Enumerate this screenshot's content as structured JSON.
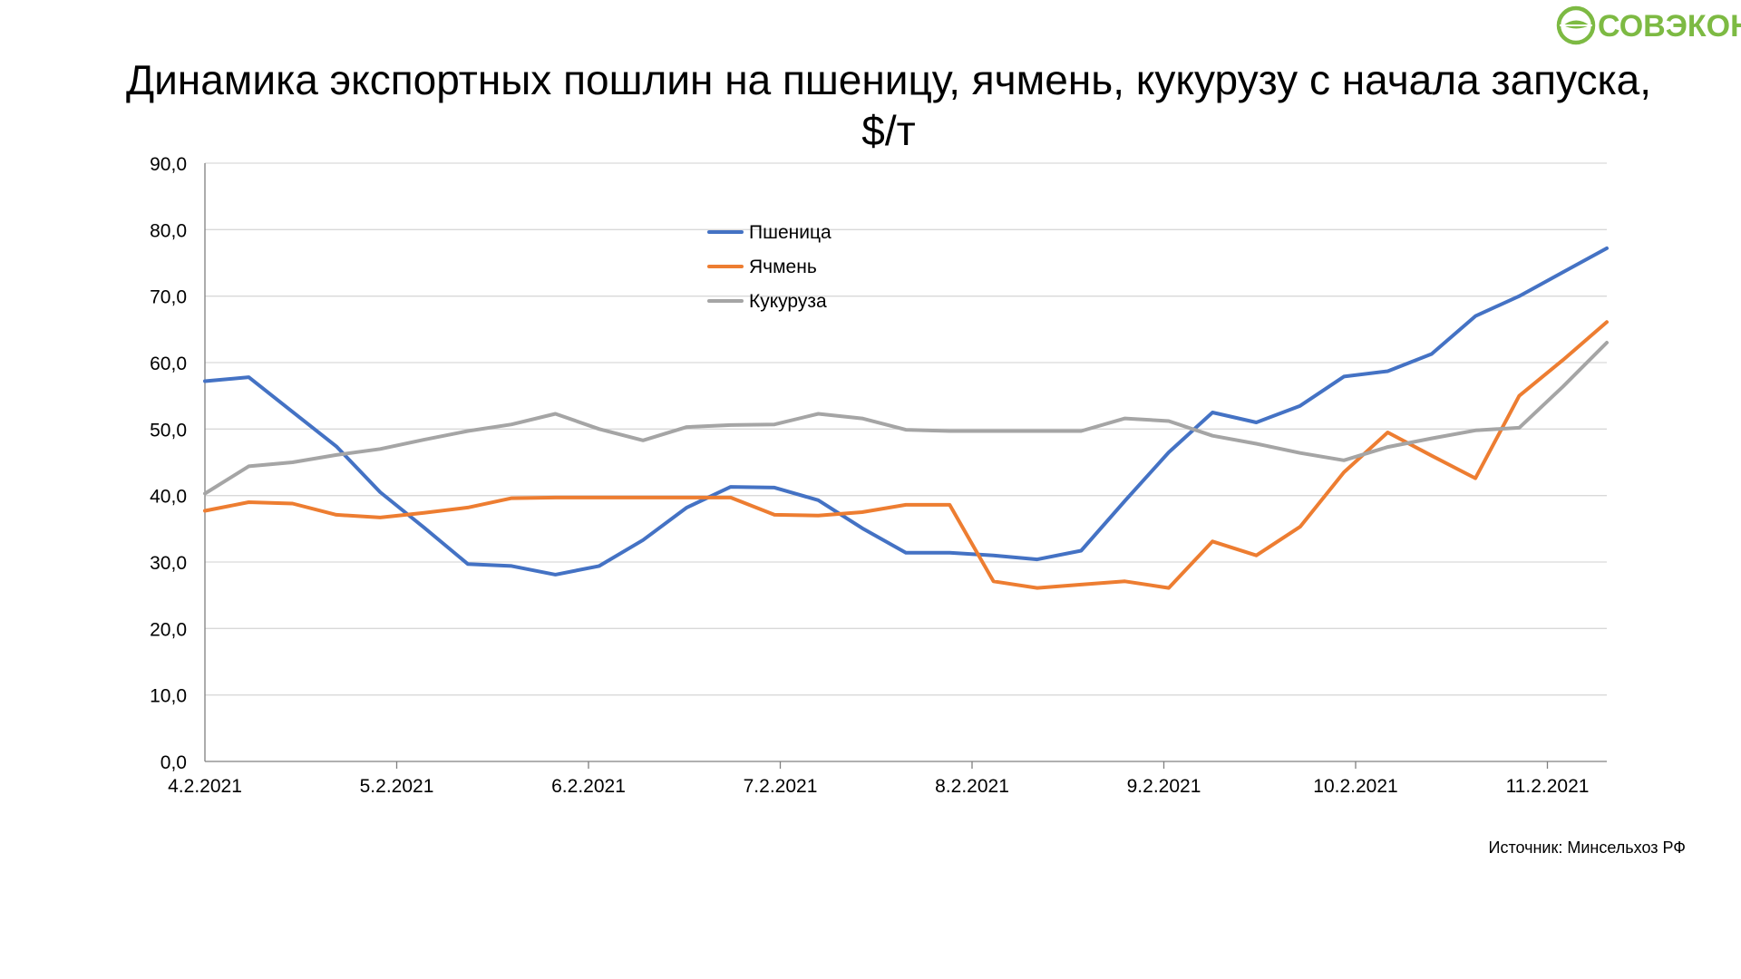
{
  "logo": {
    "text": "СОВЭКОН",
    "color": "#7dba43"
  },
  "source": "Источник: Минсельхоз РФ",
  "chart_data": {
    "type": "line",
    "title": "Динамика экспортных пошлин на пшеницу, ячмень, кукурузу с начала запуска, $/т",
    "xlabel": "",
    "ylabel": "",
    "ylim": [
      0,
      90
    ],
    "yticks": [
      "0,0",
      "10,0",
      "20,0",
      "30,0",
      "40,0",
      "50,0",
      "60,0",
      "70,0",
      "80,0",
      "90,0"
    ],
    "x_tick_labels": [
      "4.2.2021",
      "5.2.2021",
      "6.2.2021",
      "7.2.2021",
      "8.2.2021",
      "9.2.2021",
      "10.2.2021",
      "11.2.2021"
    ],
    "grid": true,
    "legend": "top-center",
    "series": [
      {
        "name": "Пшеница",
        "color": "#4472c4",
        "values": [
          57.2,
          57.8,
          52.6,
          47.4,
          40.5,
          35.2,
          29.7,
          29.4,
          28.1,
          29.4,
          33.3,
          38.2,
          41.3,
          41.2,
          39.3,
          35.1,
          31.4,
          31.4,
          31.0,
          30.4,
          31.7,
          39.2,
          46.5,
          52.5,
          51.0,
          53.5,
          57.9,
          58.7,
          61.3,
          67.0,
          70.0,
          73.6,
          77.2
        ]
      },
      {
        "name": "Ячмень",
        "color": "#ed7d31",
        "values": [
          37.7,
          39.0,
          38.8,
          37.1,
          36.7,
          37.4,
          38.2,
          39.6,
          39.7,
          39.7,
          39.7,
          39.7,
          39.7,
          37.1,
          37.0,
          37.5,
          38.6,
          38.6,
          27.1,
          26.1,
          26.6,
          27.1,
          26.1,
          33.1,
          31.0,
          35.3,
          43.5,
          49.5,
          46.0,
          42.6,
          55.0,
          60.4,
          66.1
        ]
      },
      {
        "name": "Кукуруза",
        "color": "#a5a5a5",
        "values": [
          40.3,
          44.4,
          45.0,
          46.1,
          47.0,
          48.4,
          49.7,
          50.7,
          52.3,
          50.0,
          48.3,
          50.3,
          50.6,
          50.7,
          52.3,
          51.6,
          49.9,
          49.7,
          49.7,
          49.7,
          49.7,
          51.6,
          51.2,
          49.0,
          47.8,
          46.4,
          45.3,
          47.3,
          48.6,
          49.8,
          50.2,
          56.4,
          63.0
        ]
      }
    ]
  }
}
